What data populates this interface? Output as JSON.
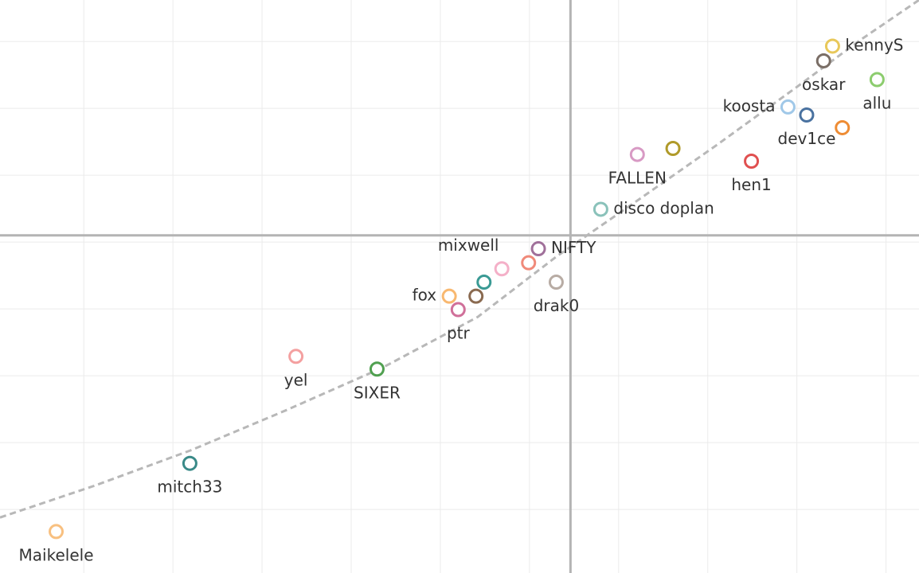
{
  "chart_data": {
    "type": "scatter",
    "names": [
      "kennyS",
      "oskar",
      "allu",
      "koosta",
      "dev1ce",
      null,
      "hen1",
      null,
      "FALLEN",
      "disco doplan",
      "NIFTY",
      null,
      "mixwell",
      null,
      "drak0",
      "fox",
      null,
      "ptr",
      "yel",
      "SIXER",
      "mitch33",
      "Maikelele"
    ],
    "x": [
      3.4,
      3.3,
      3.9,
      2.9,
      3.11,
      3.51,
      2.49,
      1.61,
      1.21,
      0.8,
      0.1,
      -0.01,
      -0.31,
      -0.51,
      0.3,
      -0.9,
      -0.6,
      -0.8,
      -2.62,
      -1.71,
      -3.81,
      -5.31
    ],
    "values": [
      2.93,
      2.71,
      2.43,
      2.02,
      1.9,
      1.71,
      1.21,
      1.4,
      1.31,
      0.49,
      -0.1,
      -0.31,
      -0.4,
      -0.6,
      -0.6,
      -0.81,
      -0.81,
      -1.01,
      -1.71,
      -1.9,
      -3.31,
      -4.33
    ],
    "colors": [
      "#e8c85a",
      "#7a6e66",
      "#8ccc6e",
      "#a0c8e8",
      "#4a72a0",
      "#ee8c34",
      "#e05050",
      "#b09a2a",
      "#d89ac4",
      "#8ac2ba",
      "#a0709a",
      "#f08a7a",
      "#f4b0c8",
      "#3a9a94",
      "#b8aca4",
      "#f8b870",
      "#8a6a50",
      "#d0709a",
      "#f4a0a0",
      "#50a050",
      "#3a8a88",
      "#f8c080"
    ],
    "trend_line": {
      "x": [
        -5.94,
        -4.87,
        -3.79,
        -2.72,
        -1.65,
        -0.58,
        0.31,
        1.21,
        2.1,
        2.99,
        3.71,
        4.37
      ],
      "values": [
        -4.12,
        -3.64,
        -3.11,
        -2.51,
        -1.88,
        -1.12,
        -0.21,
        0.62,
        1.45,
        2.31,
        3.02,
        3.62
      ]
    },
    "xlim": [
      -5.94,
      4.37
    ],
    "ylim": [
      -4.95,
      3.62
    ],
    "xgrid": [
      -5,
      -4,
      -3,
      -2,
      -1,
      0,
      1,
      2,
      3,
      4
    ],
    "ygrid": [
      -5,
      -4,
      -3,
      -2,
      -1,
      0,
      1,
      2,
      3
    ],
    "x_axis_line": 0.46,
    "y_axis_line": 0.1,
    "grid": true
  }
}
